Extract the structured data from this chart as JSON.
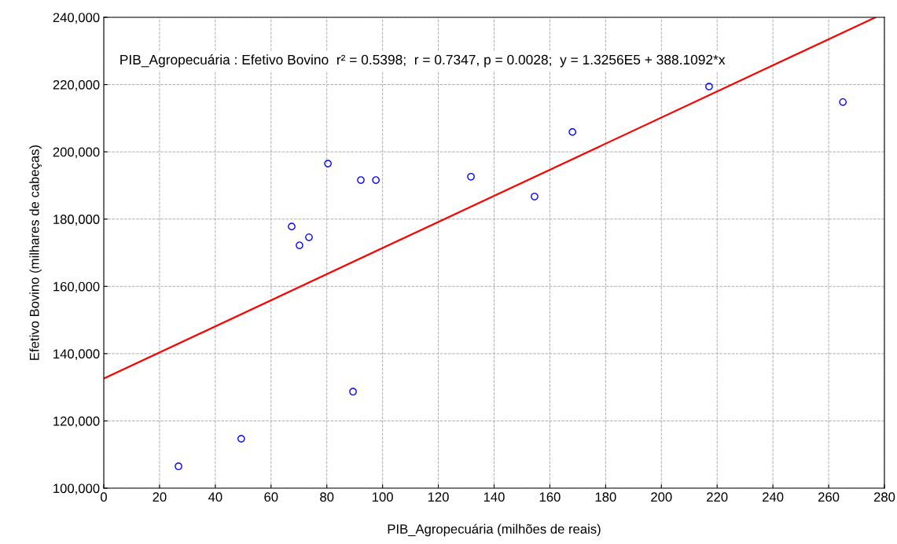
{
  "chart_data": {
    "type": "scatter",
    "xlabel": "PIB_Agropecuária (milhões de reais)",
    "ylabel": "Efetivo Bovino (milhares de cabeças)",
    "annotations": [
      "PIB_Agropecuária : Efetivo Bovino  r² = 0.5398;  r = 0.7347, p = 0.0028;  y = 1.3256E5 + 388.1092*x"
    ],
    "x": [
      26.8,
      49.3,
      67.4,
      70.2,
      73.6,
      80.4,
      89.4,
      92.2,
      97.6,
      131.7,
      154.5,
      168.1,
      217.1,
      265.1
    ],
    "series": [
      {
        "color": "#0000ff",
        "marker": "circle",
        "values": [
          106500,
          114700,
          177800,
          172200,
          174600,
          196500,
          128700,
          191600,
          191600,
          192600,
          186700,
          205900,
          219400,
          214800
        ]
      },
      {
        "type": "line",
        "color": "#ff0000",
        "x": [
          0,
          276.83
        ],
        "values": [
          132600,
          240000
        ]
      }
    ],
    "xlim": [
      0,
      280
    ],
    "xticks": [
      0,
      20,
      40,
      60,
      80,
      100,
      120,
      140,
      160,
      180,
      200,
      220,
      240,
      260,
      280
    ],
    "ylim": [
      100000,
      240000
    ],
    "yticks": [
      {
        "value": 100000,
        "label": "100,000"
      },
      {
        "value": 120000,
        "label": "120,000"
      },
      {
        "value": 140000,
        "label": "140,000"
      },
      {
        "value": 160000,
        "label": "160,000"
      },
      {
        "value": 180000,
        "label": "180,000"
      },
      {
        "value": 200000,
        "label": "200,000"
      },
      {
        "value": 220000,
        "label": "220,000"
      },
      {
        "value": 240000,
        "label": "240,000"
      }
    ],
    "grid": true
  }
}
